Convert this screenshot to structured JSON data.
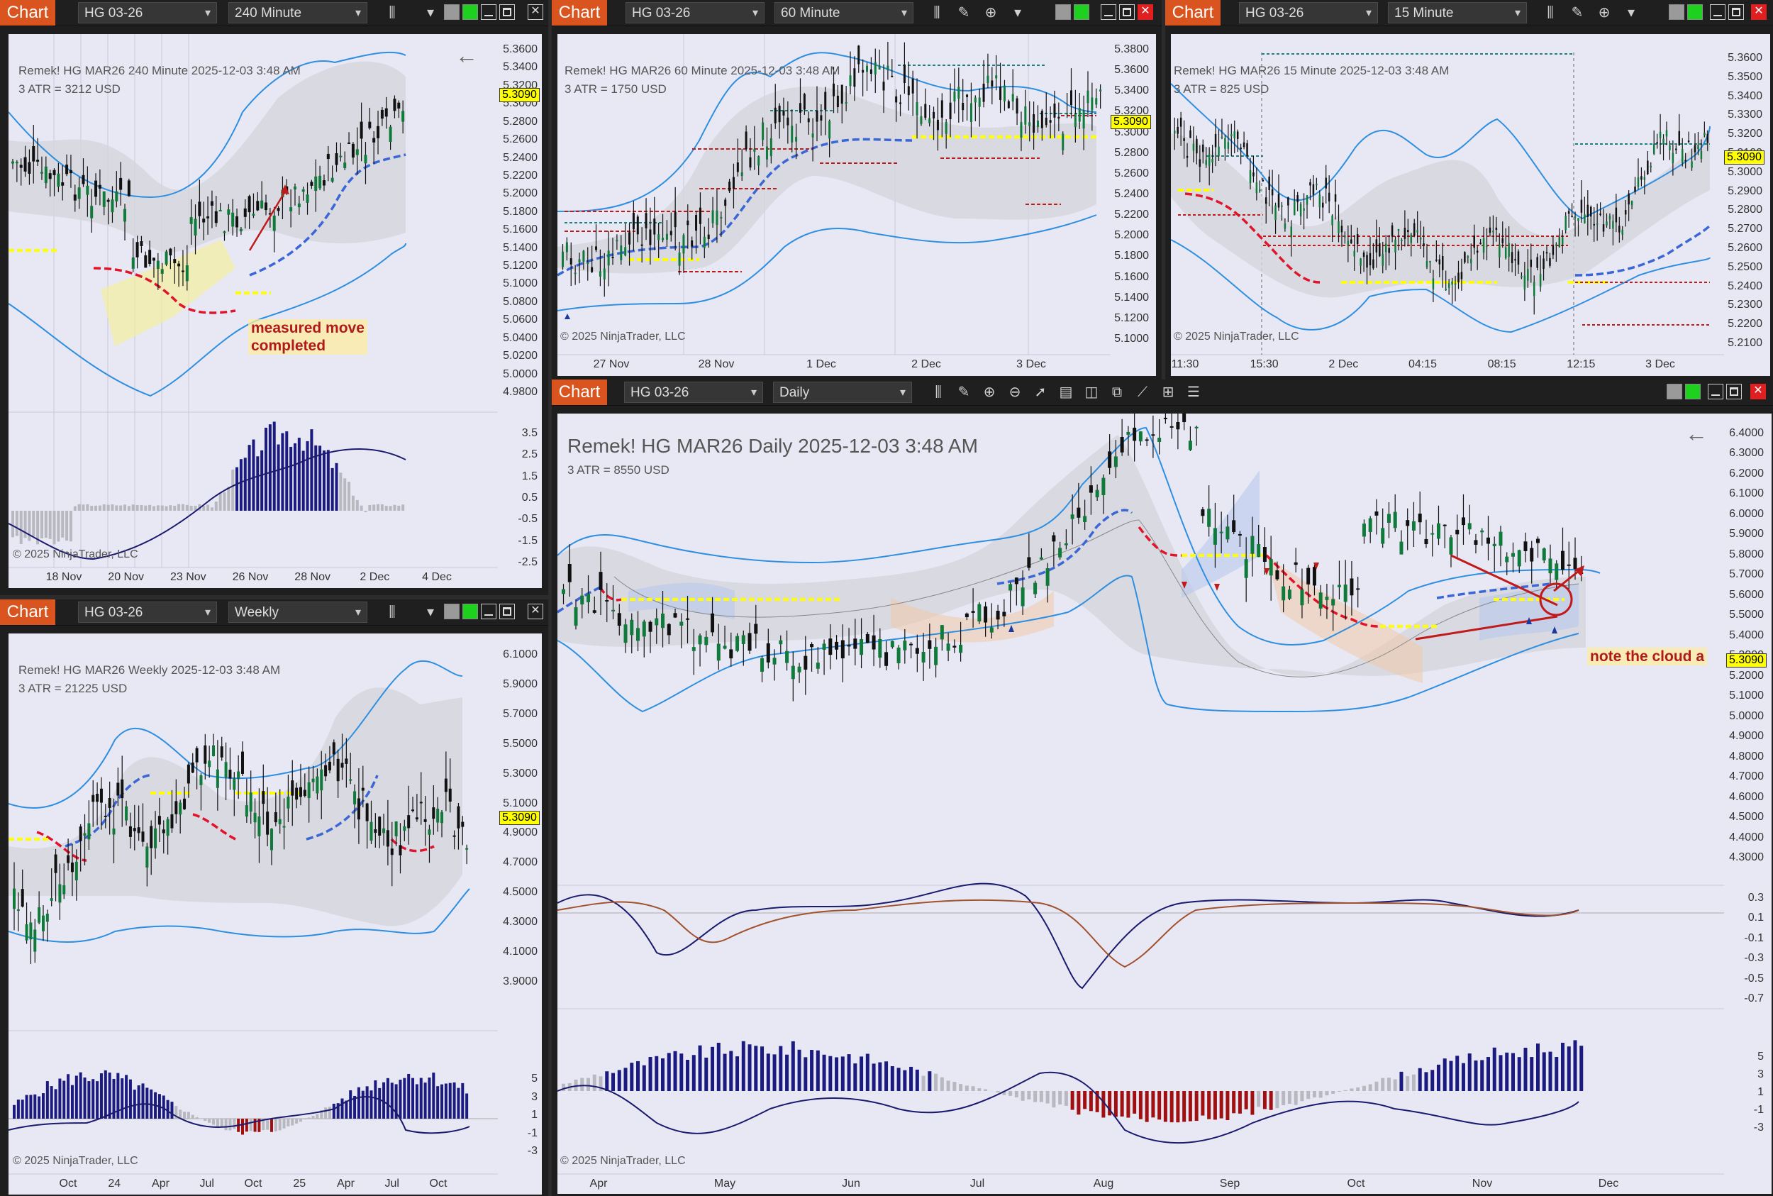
{
  "common": {
    "chart_tab": "Chart",
    "copyright": "© 2025 NinjaTrader, LLC",
    "price_tag": "5.3090",
    "chevron": "⌄"
  },
  "windows": {
    "w240": {
      "instrument": "HG 03-26",
      "interval": "240 Minute",
      "title": "Remek!  HG MAR26  240 Minute  2025-12-03 3:48 AM",
      "atr": "3 ATR = 3212 USD",
      "price_ticks": [
        "5.3600",
        "5.3400",
        "5.3200",
        "5.3000",
        "5.2800",
        "5.2600",
        "5.2400",
        "5.2200",
        "5.2000",
        "5.1800",
        "5.1600",
        "5.1400",
        "5.1200",
        "5.1000",
        "5.0800",
        "5.0600",
        "5.0400",
        "5.0200",
        "5.0000",
        "4.9800"
      ],
      "osc_ticks": [
        "3.5",
        "2.5",
        "1.5",
        "0.5",
        "-0.5",
        "-1.5",
        "-2.5"
      ],
      "date_ticks": [
        "18 Nov",
        "20 Nov",
        "23 Nov",
        "26 Nov",
        "28 Nov",
        "2 Dec",
        "4 Dec"
      ],
      "annotation": [
        "measured move",
        "completed"
      ]
    },
    "w60": {
      "instrument": "HG 03-26",
      "interval": "60 Minute",
      "title": "Remek!  HG MAR26  60 Minute  2025-12-03 3:48 AM",
      "atr": "3 ATR = 1750 USD",
      "price_ticks": [
        "5.3800",
        "5.3600",
        "5.3400",
        "5.3200",
        "5.3000",
        "5.2800",
        "5.2600",
        "5.2400",
        "5.2200",
        "5.2000",
        "5.1800",
        "5.1600",
        "5.1400",
        "5.1200",
        "5.1000"
      ],
      "date_ticks": [
        "27 Nov",
        "28 Nov",
        "1 Dec",
        "2 Dec",
        "3 Dec"
      ]
    },
    "w15": {
      "instrument": "HG 03-26",
      "interval": "15 Minute",
      "title": "Remek!  HG MAR26  15 Minute  2025-12-03 3:48 AM",
      "atr": "3 ATR = 825 USD",
      "price_ticks": [
        "5.3600",
        "5.3500",
        "5.3400",
        "5.3300",
        "5.3200",
        "5.3100",
        "5.3000",
        "5.2900",
        "5.2800",
        "5.2700",
        "5.2600",
        "5.2500",
        "5.2400",
        "5.2300",
        "5.2200",
        "5.2100"
      ],
      "date_ticks": [
        "11:30",
        "15:30",
        "2 Dec",
        "04:15",
        "08:15",
        "12:15",
        "3 Dec"
      ]
    },
    "wWeekly": {
      "instrument": "HG 03-26",
      "interval": "Weekly",
      "title": "Remek!  HG MAR26  Weekly  2025-12-03 3:48 AM",
      "atr": "3 ATR = 21225 USD",
      "price_ticks": [
        "6.1000",
        "5.9000",
        "5.7000",
        "5.5000",
        "5.3000",
        "5.1000",
        "4.9000",
        "4.7000",
        "4.5000",
        "4.3000",
        "4.1000",
        "3.9000"
      ],
      "osc_ticks": [
        "5",
        "3",
        "1",
        "-1",
        "-3"
      ],
      "date_ticks": [
        "Oct",
        "24",
        "Apr",
        "Jul",
        "Oct",
        "25",
        "Apr",
        "Jul",
        "Oct"
      ]
    },
    "wDaily": {
      "instrument": "HG 03-26",
      "interval": "Daily",
      "title": "Remek!  HG MAR26  Daily  2025-12-03 3:48 AM",
      "atr": "3 ATR = 8550 USD",
      "price_ticks": [
        "6.4000",
        "6.3000",
        "6.2000",
        "6.1000",
        "6.0000",
        "5.9000",
        "5.8000",
        "5.7000",
        "5.6000",
        "5.5000",
        "5.4000",
        "5.3000",
        "5.2000",
        "5.1000",
        "5.0000",
        "4.9000",
        "4.8000",
        "4.7000",
        "4.6000",
        "4.5000",
        "4.4000",
        "4.3000"
      ],
      "osc1_ticks": [
        "0.3",
        "0.1",
        "-0.1",
        "-0.3",
        "-0.5",
        "-0.7"
      ],
      "osc2_ticks": [
        "5",
        "3",
        "1",
        "-1",
        "-3"
      ],
      "date_ticks": [
        "Apr",
        "May",
        "Jun",
        "Jul",
        "Aug",
        "Sep",
        "Oct",
        "Nov",
        "Dec"
      ],
      "annotation": "note the cloud a"
    }
  },
  "icons": [
    "bar-type-icon",
    "pencil-icon",
    "zoom-in-icon",
    "zoom-out-icon",
    "cursor-icon",
    "properties-icon",
    "data-box-icon",
    "screenshot-icon",
    "indicator-icon",
    "strategy-icon",
    "list-icon"
  ],
  "colors": {
    "tab": "#d9541e",
    "bull": "#0f7a3a",
    "bear": "#111111",
    "band": "#2e8fe0",
    "bg": "#e8e8f4",
    "yellow": "#ffff00",
    "red_ma": "#e0142a",
    "blue_ma": "#3a66d6"
  }
}
